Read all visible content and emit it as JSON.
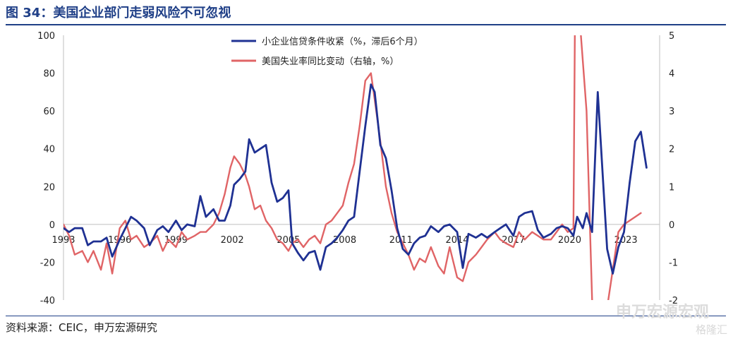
{
  "header": {
    "title": "图 34：美国企业部门走弱风险不可忽视"
  },
  "footer": {
    "source": "资料来源：CEIC，申万宏源研究"
  },
  "watermark": {
    "text": "申万宏源宏观",
    "logo_text": "格隆汇"
  },
  "chart_data": {
    "type": "line",
    "title": "",
    "x_ticks": [
      "1993",
      "1996",
      "1999",
      "2002",
      "2005",
      "2008",
      "2011",
      "2014",
      "2017",
      "2020",
      "2023"
    ],
    "xlim": [
      1993.0,
      2024.8
    ],
    "left_axis": {
      "label": "",
      "ylim": [
        -40,
        100
      ],
      "ticks": [
        -40,
        -20,
        0,
        20,
        40,
        60,
        80,
        100
      ]
    },
    "right_axis": {
      "label": "",
      "ylim": [
        -2,
        5
      ],
      "ticks": [
        -2,
        -1,
        0,
        1,
        2,
        3,
        4,
        5
      ]
    },
    "legend_position": "top-center",
    "series": [
      {
        "name": "小企业信贷条件收紧（%，滞后6个月）",
        "axis": "left",
        "color": "#1f3193",
        "x": [
          1993.0,
          1993.3,
          1993.6,
          1994.0,
          1994.3,
          1994.6,
          1995.0,
          1995.3,
          1995.6,
          1996.0,
          1996.3,
          1996.6,
          1996.9,
          1997.3,
          1997.6,
          1998.0,
          1998.3,
          1998.6,
          1999.0,
          1999.3,
          1999.6,
          2000.0,
          2000.3,
          2000.6,
          2001.0,
          2001.3,
          2001.6,
          2001.9,
          2002.1,
          2002.4,
          2002.7,
          2002.9,
          2003.2,
          2003.5,
          2003.8,
          2004.1,
          2004.4,
          2004.7,
          2005.0,
          2005.2,
          2005.5,
          2005.8,
          2006.1,
          2006.4,
          2006.7,
          2007.0,
          2007.3,
          2007.6,
          2007.9,
          2008.2,
          2008.5,
          2008.8,
          2009.1,
          2009.4,
          2009.6,
          2009.9,
          2010.2,
          2010.5,
          2010.8,
          2011.1,
          2011.4,
          2011.7,
          2012.0,
          2012.3,
          2012.6,
          2013.0,
          2013.3,
          2013.6,
          2014.0,
          2014.3,
          2014.6,
          2015.0,
          2015.3,
          2015.6,
          2016.0,
          2016.3,
          2016.6,
          2017.0,
          2017.3,
          2017.6,
          2018.0,
          2018.3,
          2018.6,
          2019.0,
          2019.3,
          2019.6,
          2019.9,
          2020.2,
          2020.4,
          2020.7,
          2020.9,
          2021.2,
          2021.5,
          2021.8,
          2022.0,
          2022.3,
          2022.6,
          2022.9,
          2023.2,
          2023.5,
          2023.8,
          2024.1
        ],
        "values": [
          -2,
          -4,
          -2,
          -2,
          -11,
          -9,
          -9,
          -7,
          -17,
          -8,
          -2,
          4,
          2,
          -2,
          -11,
          -3,
          -1,
          -4,
          2,
          -3,
          0,
          -1,
          15,
          4,
          8,
          2,
          2,
          10,
          21,
          24,
          28,
          45,
          38,
          40,
          42,
          22,
          12,
          14,
          18,
          -10,
          -15,
          -19,
          -15,
          -14,
          -24,
          -12,
          -10,
          -7,
          -3,
          2,
          4,
          28,
          52,
          74,
          70,
          42,
          35,
          18,
          -2,
          -13,
          -16,
          -10,
          -7,
          -6,
          -1,
          -4,
          -1,
          0,
          -4,
          -23,
          -5,
          -7,
          -5,
          -7,
          -4,
          -2,
          0,
          -6,
          4,
          6,
          7,
          -3,
          -7,
          -5,
          -2,
          -1,
          -2,
          -6,
          4,
          -2,
          6,
          -4,
          70,
          20,
          -13,
          -26,
          -12,
          -4,
          22,
          44,
          49,
          30
        ]
      },
      {
        "name": "美国失业率同比变动（右轴，%）",
        "axis": "right",
        "color": "#e06466",
        "x": [
          1993.0,
          1993.3,
          1993.6,
          1994.0,
          1994.3,
          1994.6,
          1995.0,
          1995.3,
          1995.6,
          1996.0,
          1996.3,
          1996.6,
          1996.9,
          1997.3,
          1997.6,
          1998.0,
          1998.3,
          1998.6,
          1999.0,
          1999.3,
          1999.6,
          2000.0,
          2000.3,
          2000.6,
          2001.0,
          2001.3,
          2001.6,
          2001.9,
          2002.1,
          2002.4,
          2002.7,
          2002.9,
          2003.2,
          2003.5,
          2003.8,
          2004.1,
          2004.4,
          2004.7,
          2005.0,
          2005.2,
          2005.5,
          2005.8,
          2006.1,
          2006.4,
          2006.7,
          2007.0,
          2007.3,
          2007.6,
          2007.9,
          2008.2,
          2008.5,
          2008.8,
          2009.1,
          2009.4,
          2009.6,
          2009.9,
          2010.2,
          2010.5,
          2010.8,
          2011.1,
          2011.4,
          2011.7,
          2012.0,
          2012.3,
          2012.6,
          2013.0,
          2013.3,
          2013.6,
          2014.0,
          2014.3,
          2014.6,
          2015.0,
          2015.3,
          2015.6,
          2016.0,
          2016.3,
          2016.6,
          2017.0,
          2017.3,
          2017.6,
          2018.0,
          2018.3,
          2018.6,
          2019.0,
          2019.3,
          2019.6,
          2019.9,
          2020.2,
          2020.35,
          2020.6,
          2020.9,
          2021.2,
          2021.5,
          2021.8,
          2022.0,
          2022.3,
          2022.6,
          2022.9,
          2023.2,
          2023.5,
          2023.8
        ],
        "values": [
          0,
          -0.3,
          -0.8,
          -0.7,
          -1,
          -0.7,
          -1.2,
          -0.5,
          -1.3,
          -0.1,
          0.1,
          -0.4,
          -0.3,
          -0.6,
          -0.5,
          -0.3,
          -0.7,
          -0.4,
          -0.6,
          -0.2,
          -0.4,
          -0.3,
          -0.2,
          -0.2,
          0,
          0.3,
          0.8,
          1.5,
          1.8,
          1.6,
          1.3,
          1,
          0.4,
          0.5,
          0.1,
          -0.1,
          -0.4,
          -0.5,
          -0.7,
          -0.5,
          -0.4,
          -0.6,
          -0.4,
          -0.3,
          -0.5,
          0,
          0.1,
          0.3,
          0.5,
          1.1,
          1.6,
          2.6,
          3.8,
          4,
          3.3,
          2.2,
          1,
          0.3,
          -0.2,
          -0.5,
          -0.8,
          -1.2,
          -0.9,
          -1,
          -0.6,
          -1.1,
          -1.3,
          -0.6,
          -1.4,
          -1.5,
          -1.0,
          -0.8,
          -0.6,
          -0.4,
          -0.2,
          -0.4,
          -0.5,
          -0.6,
          -0.2,
          -0.4,
          -0.2,
          -0.3,
          -0.4,
          -0.4,
          -0.2,
          0,
          -0.2,
          -0.1,
          10,
          5,
          3,
          -2,
          -3.5,
          -3,
          -2.2,
          -1.2,
          -0.2,
          0,
          0.1,
          0.2,
          0.3
        ]
      }
    ]
  }
}
